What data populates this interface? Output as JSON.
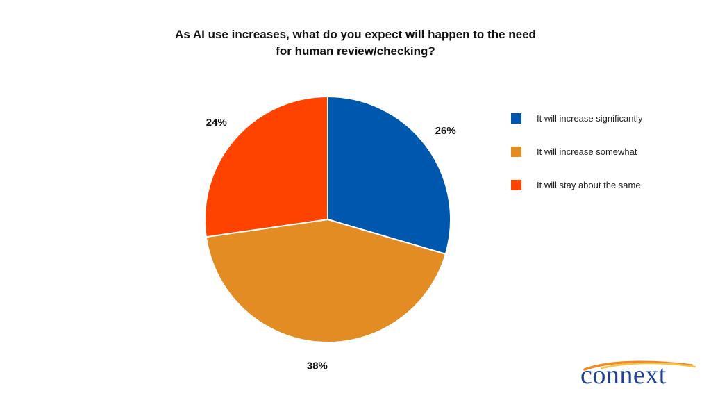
{
  "chart_data": {
    "type": "pie",
    "title_lines": [
      "As AI use increases, what do you expect will happen to the need",
      "for human review/checking?"
    ],
    "slices": [
      {
        "label": "It will increase significantly",
        "value": 26,
        "display": "26%",
        "color": "#0057AE"
      },
      {
        "label": "It will increase somewhat",
        "value": 38,
        "display": "38%",
        "color": "#E48C24"
      },
      {
        "label": "It will stay about the same",
        "value": 24,
        "display": "24%",
        "color": "#FE4300"
      }
    ],
    "legend_position": "right"
  },
  "logo": {
    "text": "connext",
    "icon": "connext-swoosh-logo",
    "colors": {
      "text": "#1f3f8f",
      "swoosh_orange": "#f08a24",
      "swoosh_yellow": "#f6c543"
    }
  }
}
